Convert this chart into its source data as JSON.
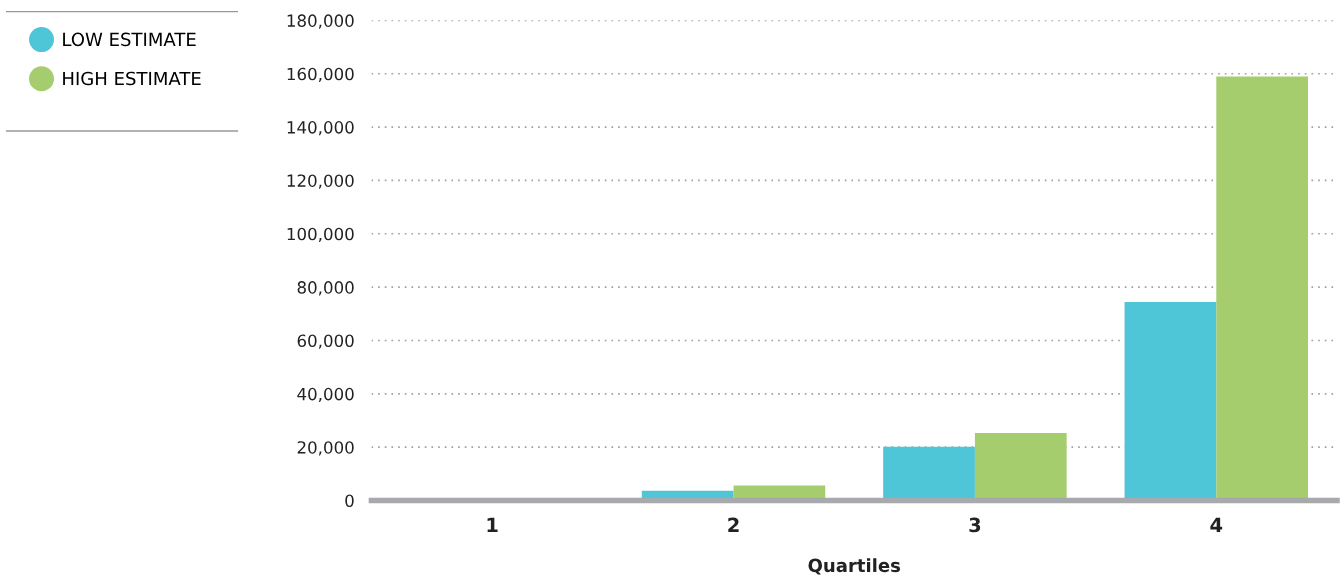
{
  "chart_data": {
    "type": "bar",
    "xlabel": "Quartiles",
    "categories": [
      "1",
      "2",
      "3",
      "4"
    ],
    "series": [
      {
        "name": "LOW ESTIMATE",
        "color": "#4fc5d8",
        "values": [
          0,
          3700,
          20200,
          74400
        ]
      },
      {
        "name": "HIGH ESTIMATE",
        "color": "#a5cd6e",
        "values": [
          0,
          5600,
          25300,
          159000
        ]
      }
    ],
    "ylim": [
      0,
      180000
    ],
    "yticks": [
      {
        "value": 0,
        "label": "0"
      },
      {
        "value": 20000,
        "label": "20,000"
      },
      {
        "value": 40000,
        "label": "40,000"
      },
      {
        "value": 60000,
        "label": "60,000"
      },
      {
        "value": 80000,
        "label": "80,000"
      },
      {
        "value": 100000,
        "label": "100,000"
      },
      {
        "value": 120000,
        "label": "120,000"
      },
      {
        "value": 140000,
        "label": "140,000"
      },
      {
        "value": 160000,
        "label": "160,000"
      },
      {
        "value": 180000,
        "label": "180,000"
      }
    ],
    "grid": "y",
    "legend": "top left",
    "marker": "circle"
  }
}
